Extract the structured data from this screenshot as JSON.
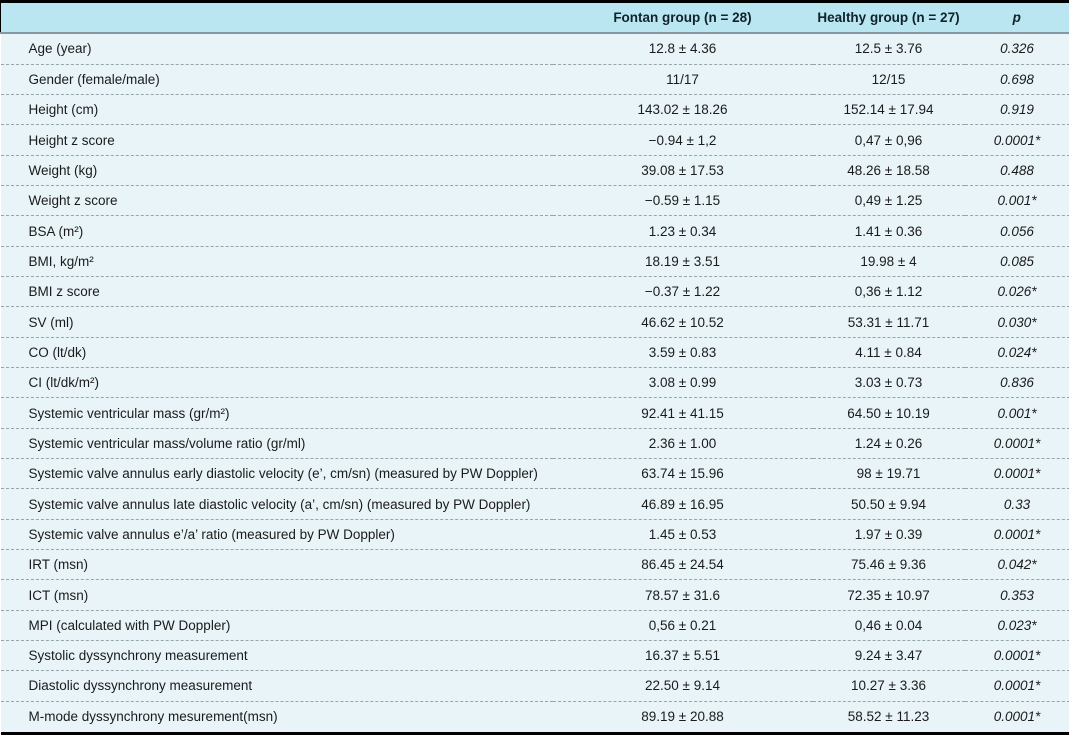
{
  "table": {
    "columns": {
      "parameter": "",
      "fontan": "Fontan group (n = 28)",
      "healthy": "Healthy group (n = 27)",
      "p": "p"
    },
    "rows": [
      {
        "label": "Age (year)",
        "fontan": "12.8 ± 4.36",
        "healthy": "12.5 ± 3.76",
        "p": "0.326"
      },
      {
        "label": "Gender (female/male)",
        "fontan": "11/17",
        "healthy": "12/15",
        "p": "0.698"
      },
      {
        "label": "Height (cm)",
        "fontan": "143.02 ± 18.26",
        "healthy": "152.14 ± 17.94",
        "p": "0.919"
      },
      {
        "label": "Height z score",
        "fontan": "−0.94 ± 1,2",
        "healthy": "0,47 ± 0,96",
        "p": "0.0001*"
      },
      {
        "label": "Weight (kg)",
        "fontan": "39.08 ± 17.53",
        "healthy": "48.26 ± 18.58",
        "p": "0.488"
      },
      {
        "label": "Weight z score",
        "fontan": "−0.59 ± 1.15",
        "healthy": "0,49 ± 1.25",
        "p": "0.001*"
      },
      {
        "label": "BSA (m²)",
        "fontan": "1.23 ± 0.34",
        "healthy": "1.41 ± 0.36",
        "p": "0.056"
      },
      {
        "label": "BMI, kg/m²",
        "fontan": "18.19 ± 3.51",
        "healthy": "19.98 ± 4",
        "p": "0.085"
      },
      {
        "label": "BMI z score",
        "fontan": "−0.37 ± 1.22",
        "healthy": "0,36 ± 1.12",
        "p": "0.026*"
      },
      {
        "label": "SV (ml)",
        "fontan": "46.62 ± 10.52",
        "healthy": "53.31 ± 11.71",
        "p": "0.030*"
      },
      {
        "label": "CO (lt/dk)",
        "fontan": "3.59 ± 0.83",
        "healthy": "4.11 ± 0.84",
        "p": "0.024*"
      },
      {
        "label": "CI (lt/dk/m²)",
        "fontan": "3.08 ± 0.99",
        "healthy": "3.03 ± 0.73",
        "p": "0.836"
      },
      {
        "label": "Systemic ventricular mass (gr/m²)",
        "fontan": "92.41 ± 41.15",
        "healthy": "64.50 ± 10.19",
        "p": "0.001*"
      },
      {
        "label": "Systemic ventricular mass/volume ratio (gr/ml)",
        "fontan": "2.36 ± 1.00",
        "healthy": "1.24 ± 0.26",
        "p": "0.0001*"
      },
      {
        "label": "Systemic valve annulus early diastolic velocity (e’, cm/sn) (measured by PW Doppler)",
        "fontan": "63.74 ± 15.96",
        "healthy": "98 ± 19.71",
        "p": "0.0001*"
      },
      {
        "label": "Systemic valve annulus late diastolic velocity (a’, cm/sn) (measured by PW Doppler)",
        "fontan": "46.89 ± 16.95",
        "healthy": "50.50 ± 9.94",
        "p": "0.33"
      },
      {
        "label": "Systemic valve annulus e’/a’ ratio (measured by PW Doppler)",
        "fontan": "1.45 ± 0.53",
        "healthy": "1.97 ± 0.39",
        "p": "0.0001*"
      },
      {
        "label": "IRT (msn)",
        "fontan": "86.45 ± 24.54",
        "healthy": "75.46 ± 9.36",
        "p": "0.042*"
      },
      {
        "label": "ICT (msn)",
        "fontan": "78.57 ± 31.6",
        "healthy": "72.35 ± 10.97",
        "p": "0.353"
      },
      {
        "label": "MPI (calculated with PW Doppler)",
        "fontan": "0,56 ± 0.21",
        "healthy": "0,46 ± 0.04",
        "p": "0.023*"
      },
      {
        "label": "Systolic dyssynchrony measurement",
        "fontan": "16.37 ± 5.51",
        "healthy": "9.24 ± 3.47",
        "p": "0.0001*"
      },
      {
        "label": "Diastolic dyssynchrony measurement",
        "fontan": "22.50 ± 9.14",
        "healthy": "10.27 ± 3.36",
        "p": "0.0001*"
      },
      {
        "label": "M-mode dyssynchrony mesurement(msn)",
        "fontan": "89.19 ± 20.88",
        "healthy": "58.52 ± 11.23",
        "p": "0.0001*"
      }
    ]
  },
  "colors": {
    "header_background": "#b9e6f1",
    "row_background": "#e8f4f8",
    "outer_rule": "#000000",
    "header_rule": "#8498a4",
    "row_divider": "#98a4a8",
    "text": "#1b1b1b"
  }
}
